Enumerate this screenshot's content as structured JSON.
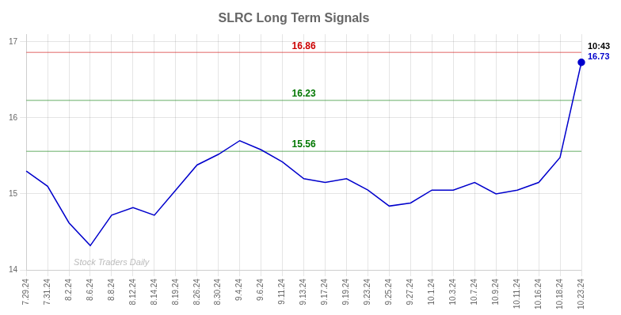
{
  "chart_data": {
    "type": "line",
    "title": "SLRC Long Term Signals",
    "categories": [
      "7.29.24",
      "7.31.24",
      "8.2.24",
      "8.6.24",
      "8.8.24",
      "8.12.24",
      "8.14.24",
      "8.19.24",
      "8.26.24",
      "8.30.24",
      "9.4.24",
      "9.6.24",
      "9.11.24",
      "9.13.24",
      "9.17.24",
      "9.19.24",
      "9.23.24",
      "9.25.24",
      "9.27.24",
      "10.1.24",
      "10.3.24",
      "10.7.24",
      "10.9.24",
      "10.11.24",
      "10.16.24",
      "10.18.24",
      "10.23.24"
    ],
    "values": [
      15.3,
      15.1,
      14.62,
      14.32,
      14.72,
      14.82,
      14.72,
      15.05,
      15.38,
      15.52,
      15.7,
      15.58,
      15.42,
      15.2,
      15.15,
      15.2,
      15.05,
      14.84,
      14.88,
      15.05,
      15.05,
      15.15,
      15.0,
      15.05,
      15.15,
      15.48,
      16.73
    ],
    "color": "#0000cc",
    "ylim": [
      14.0,
      17.1
    ],
    "yticks": [
      14,
      15,
      16,
      17
    ],
    "grid": true,
    "annotations": [
      {
        "type": "hline",
        "y": 16.86,
        "label": "16.86",
        "color": "#cc0000"
      },
      {
        "type": "hline",
        "y": 16.23,
        "label": "16.23",
        "color": "#007700"
      },
      {
        "type": "hline",
        "y": 15.56,
        "label": "15.56",
        "color": "#007700"
      },
      {
        "type": "point_label",
        "x": "10.23.24",
        "y": 16.73,
        "label": "16.73",
        "color": "#0000cc"
      },
      {
        "type": "point_label",
        "x": "10.23.24",
        "y": 16.73,
        "label": "10:43",
        "color": "#000000"
      },
      {
        "type": "watermark",
        "label": "Stock Traders Daily",
        "color": "#bbbbbb"
      }
    ]
  }
}
